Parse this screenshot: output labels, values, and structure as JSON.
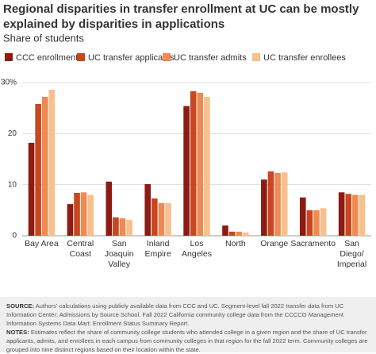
{
  "chart_data": {
    "type": "bar",
    "title": [
      "Regional disparities in transfer enrollment at UC can be mostly",
      "explained by disparities in applications"
    ],
    "subtitle": "Share of students",
    "categories": [
      [
        "Bay Area"
      ],
      [
        "Central",
        "Coast"
      ],
      [
        "San",
        "Joaquin",
        "Valley"
      ],
      [
        "Inland",
        "Empire"
      ],
      [
        "Los",
        "Angeles"
      ],
      [
        "North"
      ],
      [
        "Orange"
      ],
      [
        "Sacramento"
      ],
      [
        "San",
        "Diego/",
        "Imperial"
      ]
    ],
    "series": [
      {
        "name": "CCC enrollment",
        "color": "#8c1b13",
        "values": [
          18.2,
          6.2,
          10.6,
          10.1,
          25.4,
          2.0,
          11.0,
          7.5,
          8.5
        ]
      },
      {
        "name": "UC transfer applicants",
        "color": "#c9461f",
        "values": [
          25.8,
          8.4,
          3.6,
          7.3,
          28.3,
          0.8,
          12.6,
          5.0,
          8.2
        ]
      },
      {
        "name": "UC transfer admits",
        "color": "#ee8a52",
        "values": [
          27.2,
          8.5,
          3.4,
          6.4,
          28.0,
          0.8,
          12.3,
          5.0,
          8.0
        ]
      },
      {
        "name": "UC transfer enrollees",
        "color": "#f8c08c",
        "values": [
          28.6,
          8.0,
          3.1,
          6.4,
          27.2,
          0.6,
          12.4,
          5.4,
          8.0
        ]
      }
    ],
    "ylim": [
      0,
      30
    ],
    "yticks": [
      0,
      10,
      20,
      {
        "value": 30,
        "label": "30%"
      }
    ],
    "grid": true,
    "legend": "top-left",
    "source": {
      "label": "SOURCE:",
      "text": "Authors' calculations using publicly available data from CCC and UC. Segment-level fall 2022 transfer data from UC Information Center: Admissions by Source School. Fall 2022 California community college data from the CCCCO Management Information Systems Data Mart: Enrollment Status Summary Report."
    },
    "notes": {
      "label": "NOTES:",
      "text": "Estimates reflect the share of community college students who attended college in a given region and the share of UC transfer applicants, admits, and enrollees in each campus from community colleges in that region for the fall 2022 term. Community colleges are grouped into nine distinct regions based on their location within the state."
    }
  }
}
